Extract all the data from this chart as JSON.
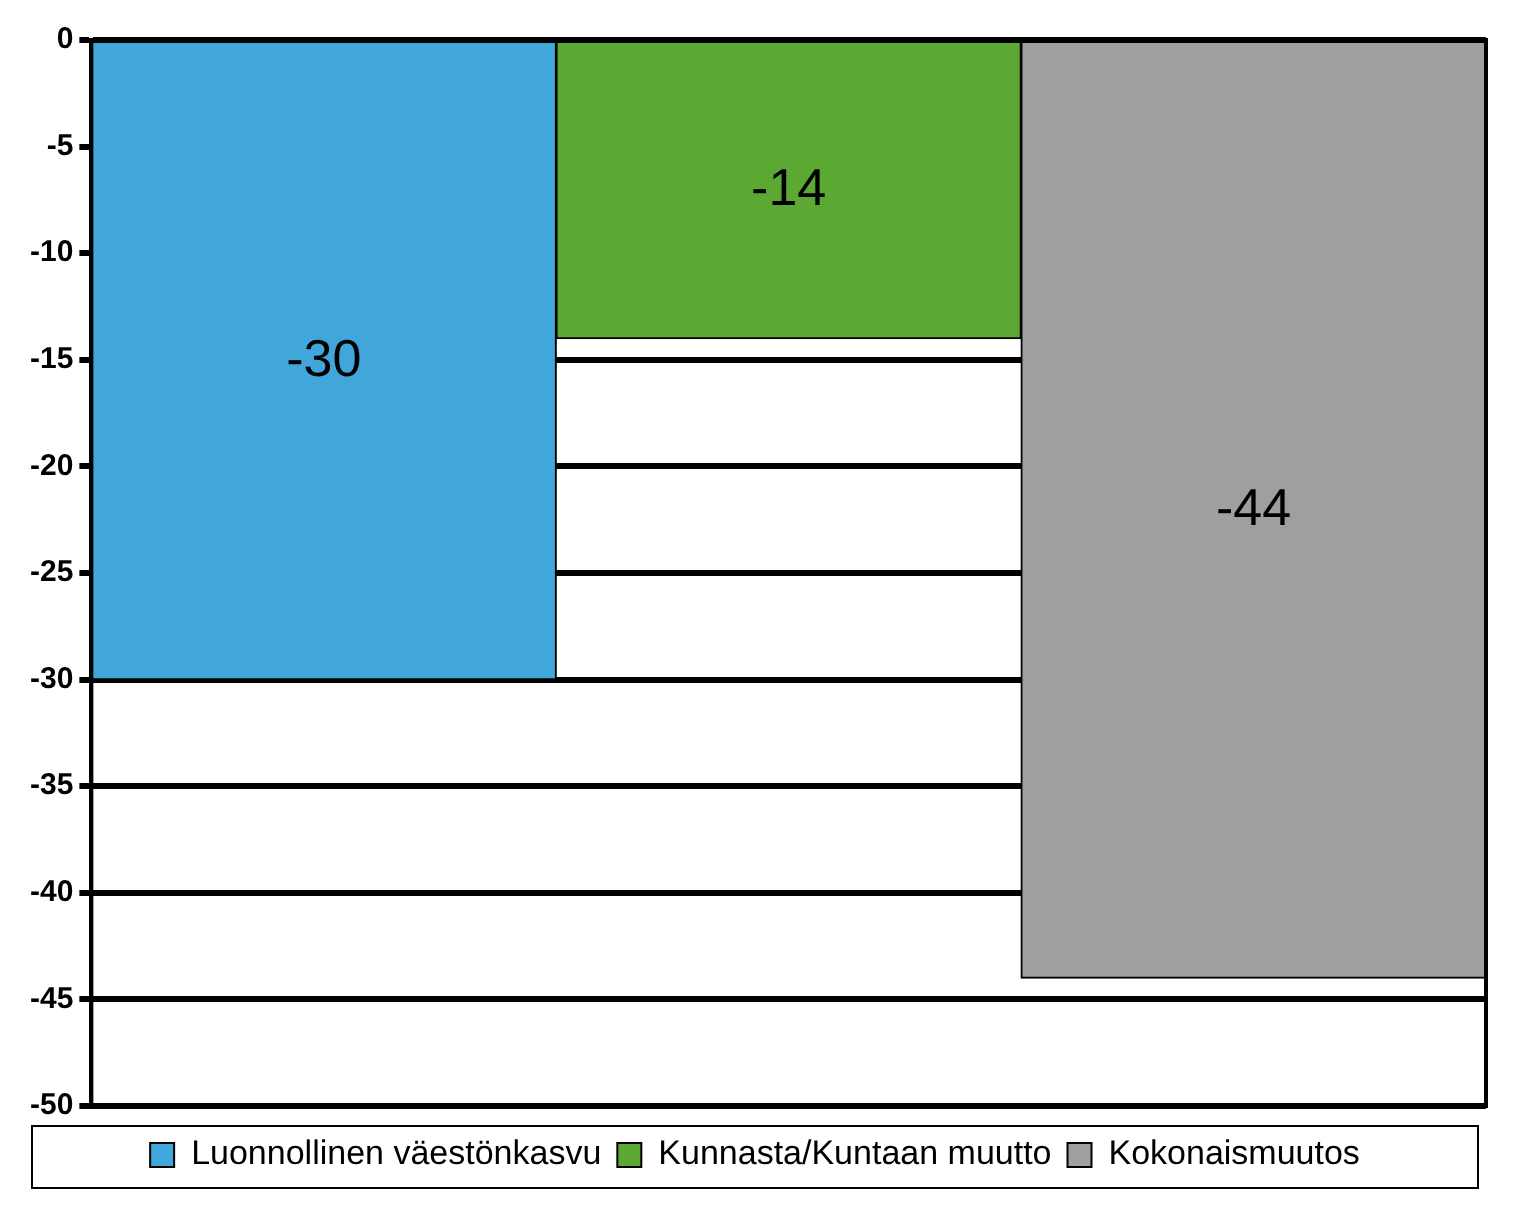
{
  "chart_data": {
    "type": "bar",
    "categories": [
      null,
      null,
      null
    ],
    "series": [
      {
        "name": "Luonnollinen väestönkasvu",
        "color": "#41a6d9",
        "values": [
          -30,
          null,
          null
        ]
      },
      {
        "name": "Kunnasta/Kuntaan muutto",
        "color": "#5ba833",
        "values": [
          null,
          -14,
          null
        ]
      },
      {
        "name": "Kokonaismuutos",
        "color": "#a09e9f",
        "values": [
          null,
          null,
          -44
        ]
      }
    ],
    "ylim": [
      -50,
      0
    ],
    "yticks": [
      -50,
      -45,
      -40,
      -35,
      -30,
      -25,
      -20,
      -15,
      -10,
      -5,
      0
    ],
    "grid": "y",
    "legend": "bottom",
    "data_labels": true
  }
}
